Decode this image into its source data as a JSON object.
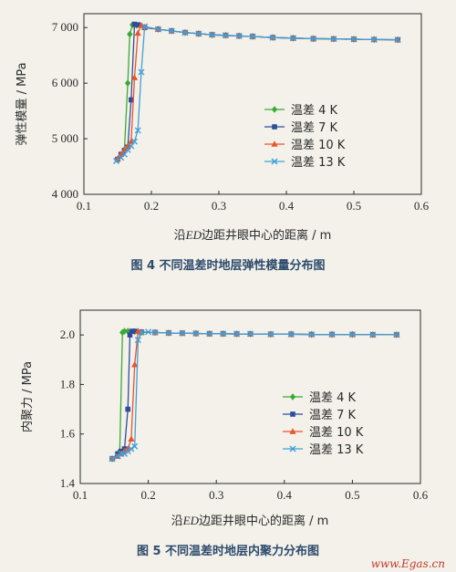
{
  "colors": {
    "4K": "#3aaa35",
    "7K": "#2e4d9b",
    "10K": "#e8542a",
    "13K": "#3f9fd8",
    "caption": "#2c4a6b",
    "watermark": "#c0392b"
  },
  "watermark": "www.Egas.cn",
  "chart_data": [
    {
      "type": "line",
      "caption": "图 4   不同温差时地层弹性模量分布图",
      "xlabel_prefix": "沿",
      "xlabel_em": "ED",
      "xlabel_suffix": "边距井眼中心的距离 / m",
      "ylabel": "弹性模量 / MPa",
      "xlim": [
        0.1,
        0.6
      ],
      "ylim": [
        4000,
        7250
      ],
      "xticks": [
        0.1,
        0.2,
        0.3,
        0.4,
        0.5,
        0.6
      ],
      "xtick_labels": [
        "0.1",
        "0.2",
        "0.3",
        "0.4",
        "0.5",
        "0.6"
      ],
      "yticks": [
        4000,
        5000,
        6000,
        7000
      ],
      "ytick_labels": [
        "4 000",
        "5 000",
        "6 000",
        "7 000"
      ],
      "legend_position": "right-middle",
      "series": [
        {
          "name": "温差 4 K",
          "color_key": "4K",
          "marker": "diamond",
          "x": [
            0.15,
            0.155,
            0.16,
            0.165,
            0.168,
            0.172,
            0.178,
            0.19,
            0.21,
            0.23,
            0.25,
            0.27,
            0.29,
            0.31,
            0.33,
            0.35,
            0.38,
            0.41,
            0.44,
            0.47,
            0.5,
            0.53,
            0.565
          ],
          "y": [
            4620,
            4700,
            4800,
            6000,
            6880,
            7050,
            7040,
            7000,
            6970,
            6940,
            6910,
            6890,
            6870,
            6860,
            6850,
            6840,
            6820,
            6810,
            6800,
            6795,
            6790,
            6785,
            6780
          ]
        },
        {
          "name": "温差 7 K",
          "color_key": "7K",
          "marker": "square",
          "x": [
            0.15,
            0.155,
            0.16,
            0.165,
            0.17,
            0.175,
            0.18,
            0.19,
            0.21,
            0.23,
            0.25,
            0.27,
            0.29,
            0.31,
            0.33,
            0.35,
            0.38,
            0.41,
            0.44,
            0.47,
            0.5,
            0.53,
            0.565
          ],
          "y": [
            4630,
            4720,
            4790,
            4850,
            5700,
            7060,
            7050,
            7000,
            6970,
            6940,
            6910,
            6890,
            6870,
            6860,
            6850,
            6840,
            6820,
            6810,
            6800,
            6795,
            6790,
            6785,
            6780
          ]
        },
        {
          "name": "温差 10 K",
          "color_key": "10K",
          "marker": "triangle",
          "x": [
            0.15,
            0.155,
            0.16,
            0.165,
            0.17,
            0.175,
            0.18,
            0.185,
            0.19,
            0.21,
            0.23,
            0.25,
            0.27,
            0.29,
            0.31,
            0.33,
            0.35,
            0.38,
            0.41,
            0.44,
            0.47,
            0.5,
            0.53,
            0.565
          ],
          "y": [
            4640,
            4720,
            4800,
            4870,
            4950,
            6100,
            6900,
            7040,
            7010,
            6970,
            6940,
            6910,
            6890,
            6870,
            6860,
            6850,
            6840,
            6820,
            6810,
            6800,
            6795,
            6790,
            6785,
            6780
          ]
        },
        {
          "name": "温差 13 K",
          "color_key": "13K",
          "marker": "x",
          "x": [
            0.148,
            0.155,
            0.16,
            0.165,
            0.17,
            0.175,
            0.18,
            0.185,
            0.19,
            0.21,
            0.23,
            0.25,
            0.27,
            0.29,
            0.31,
            0.33,
            0.35,
            0.38,
            0.41,
            0.44,
            0.47,
            0.5,
            0.53,
            0.565
          ],
          "y": [
            4600,
            4660,
            4720,
            4800,
            4870,
            4950,
            5150,
            6200,
            7020,
            6970,
            6940,
            6910,
            6890,
            6870,
            6860,
            6850,
            6840,
            6820,
            6810,
            6800,
            6795,
            6790,
            6785,
            6780
          ]
        }
      ]
    },
    {
      "type": "line",
      "caption": "图 5   不同温差时地层内聚力分布图",
      "xlabel_prefix": "沿",
      "xlabel_em": "ED",
      "xlabel_suffix": "边距井眼中心的距离 / m",
      "ylabel": "内聚力 / MPa",
      "xlim": [
        0.1,
        0.6
      ],
      "ylim": [
        1.4,
        2.1
      ],
      "xticks": [
        0.1,
        0.2,
        0.3,
        0.4,
        0.5,
        0.6
      ],
      "xtick_labels": [
        "0.1",
        "0.2",
        "0.3",
        "0.4",
        "0.5",
        "0.6"
      ],
      "yticks": [
        1.4,
        1.6,
        1.8,
        2.0
      ],
      "ytick_labels": [
        "1.4",
        "1.6",
        "1.8",
        "2.0"
      ],
      "legend_position": "right-middle",
      "series": [
        {
          "name": "温差 4 K",
          "color_key": "4K",
          "marker": "diamond",
          "x": [
            0.147,
            0.155,
            0.158,
            0.162,
            0.165,
            0.17,
            0.18,
            0.19,
            0.21,
            0.23,
            0.25,
            0.27,
            0.29,
            0.31,
            0.33,
            0.35,
            0.38,
            0.41,
            0.44,
            0.47,
            0.5,
            0.53,
            0.565
          ],
          "y": [
            1.5,
            1.52,
            1.53,
            2.01,
            2.015,
            2.015,
            2.013,
            2.01,
            2.01,
            2.008,
            2.007,
            2.006,
            2.005,
            2.005,
            2.004,
            2.004,
            2.003,
            2.003,
            2.002,
            2.002,
            2.002,
            2.001,
            2.001
          ]
        },
        {
          "name": "温差 7 K",
          "color_key": "7K",
          "marker": "square",
          "x": [
            0.147,
            0.155,
            0.16,
            0.165,
            0.17,
            0.173,
            0.176,
            0.18,
            0.19,
            0.21,
            0.23,
            0.25,
            0.27,
            0.29,
            0.31,
            0.33,
            0.35,
            0.38,
            0.41,
            0.44,
            0.47,
            0.5,
            0.53,
            0.565
          ],
          "y": [
            1.5,
            1.52,
            1.53,
            1.54,
            1.7,
            2.0,
            2.015,
            2.015,
            2.012,
            2.01,
            2.008,
            2.007,
            2.006,
            2.005,
            2.005,
            2.004,
            2.004,
            2.003,
            2.003,
            2.002,
            2.002,
            2.002,
            2.001,
            2.001
          ]
        },
        {
          "name": "温差 10 K",
          "color_key": "10K",
          "marker": "triangle",
          "x": [
            0.147,
            0.155,
            0.16,
            0.165,
            0.17,
            0.175,
            0.18,
            0.185,
            0.19,
            0.21,
            0.23,
            0.25,
            0.27,
            0.29,
            0.31,
            0.33,
            0.35,
            0.38,
            0.41,
            0.44,
            0.47,
            0.5,
            0.53,
            0.565
          ],
          "y": [
            1.5,
            1.51,
            1.52,
            1.53,
            1.54,
            1.58,
            1.88,
            2.015,
            2.012,
            2.01,
            2.008,
            2.007,
            2.006,
            2.005,
            2.005,
            2.004,
            2.004,
            2.003,
            2.003,
            2.002,
            2.002,
            2.002,
            2.001,
            2.001
          ]
        },
        {
          "name": "温差 13 K",
          "color_key": "13K",
          "marker": "x",
          "x": [
            0.147,
            0.155,
            0.16,
            0.165,
            0.17,
            0.175,
            0.18,
            0.185,
            0.19,
            0.2,
            0.21,
            0.23,
            0.25,
            0.27,
            0.29,
            0.31,
            0.33,
            0.35,
            0.38,
            0.41,
            0.44,
            0.47,
            0.5,
            0.53,
            0.565
          ],
          "y": [
            1.5,
            1.51,
            1.52,
            1.52,
            1.53,
            1.54,
            1.55,
            1.98,
            2.01,
            2.012,
            2.01,
            2.008,
            2.007,
            2.006,
            2.005,
            2.005,
            2.004,
            2.004,
            2.003,
            2.003,
            2.002,
            2.002,
            2.002,
            2.001,
            2.001
          ]
        }
      ]
    }
  ]
}
